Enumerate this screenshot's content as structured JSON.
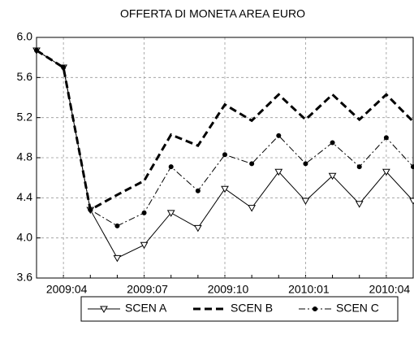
{
  "chart_data": {
    "type": "line",
    "title": "OFFERTA DI MONETA AREA EURO",
    "categories": [
      null,
      "2009:04",
      null,
      null,
      "2009:07",
      null,
      null,
      "2009:10",
      null,
      null,
      "2010:01",
      null,
      null,
      "2010:04",
      null
    ],
    "series": [
      {
        "name": "SCEN A",
        "color": "#000000",
        "line_style": "solid",
        "marker": "triangle-down",
        "values": [
          5.87,
          5.7,
          4.28,
          3.8,
          3.93,
          4.25,
          4.1,
          4.49,
          4.3,
          4.66,
          4.37,
          4.62,
          4.34,
          4.66,
          4.37
        ]
      },
      {
        "name": "SCEN B",
        "color": "#000000",
        "line_style": "dashed-thick",
        "marker": "none",
        "values": [
          5.87,
          5.7,
          4.28,
          4.43,
          4.57,
          5.03,
          4.92,
          5.33,
          5.17,
          5.43,
          5.18,
          5.43,
          5.18,
          5.43,
          5.16
        ]
      },
      {
        "name": "SCEN C",
        "color": "#000000",
        "line_style": "dash-dot",
        "marker": "circle",
        "values": [
          5.87,
          5.7,
          4.28,
          4.12,
          4.25,
          4.71,
          4.47,
          4.83,
          4.74,
          5.02,
          4.74,
          4.95,
          4.71,
          5.0,
          4.71
        ]
      }
    ],
    "ylim": [
      3.6,
      6.0
    ],
    "yticks": [
      {
        "value": 3.6,
        "label": "3.6"
      },
      {
        "value": 4.0,
        "label": "4.0"
      },
      4.4,
      4.8,
      5.2,
      5.6,
      {
        "value": 6.0,
        "label": "6.0"
      }
    ],
    "grid": true,
    "legend": "bottom"
  }
}
